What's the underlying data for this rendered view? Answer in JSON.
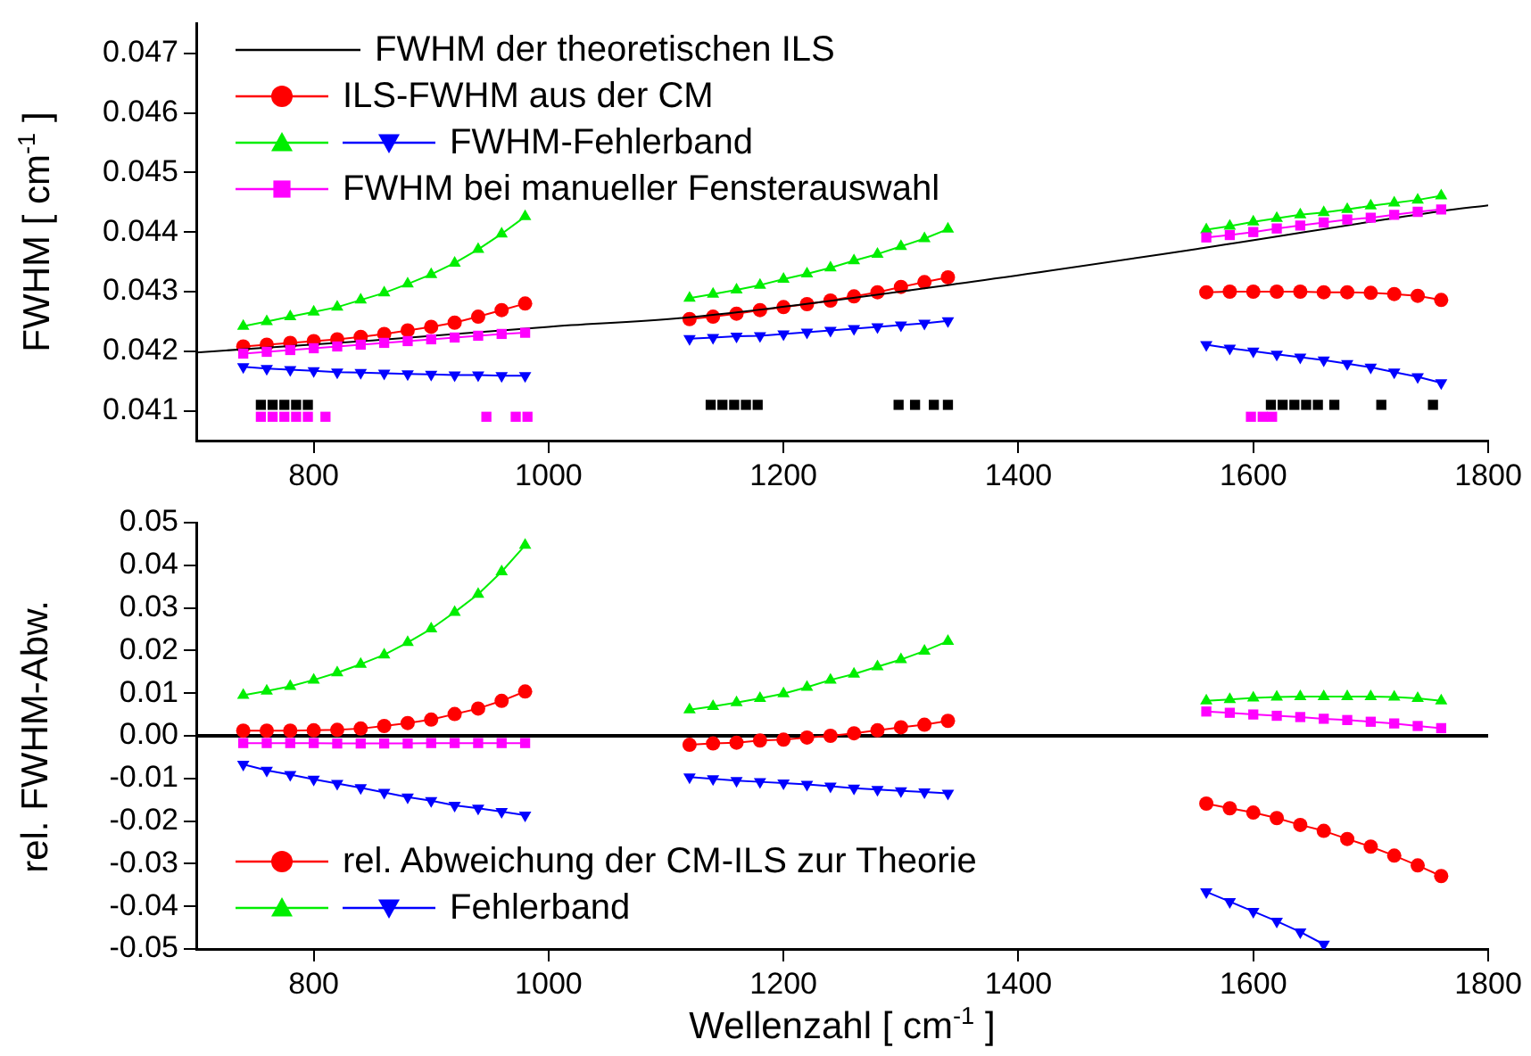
{
  "chart_data": [
    {
      "type": "line",
      "ylabel": "FWHM [ cm$^{-1}$ ]",
      "xlim": [
        700,
        1800
      ],
      "xticks": [
        800,
        1000,
        1200,
        1400,
        1600,
        1800
      ],
      "ylim": [
        0.0405,
        0.0475
      ],
      "yticks": [
        0.041,
        0.042,
        0.043,
        0.044,
        0.045,
        0.046,
        0.047
      ],
      "grid": false,
      "legend": "top left",
      "line_style": "solid",
      "x": [
        740,
        760,
        780,
        800,
        820,
        840,
        860,
        880,
        900,
        920,
        940,
        960,
        980,
        1050,
        1120,
        1140,
        1160,
        1180,
        1200,
        1220,
        1240,
        1260,
        1280,
        1300,
        1320,
        1340,
        1450,
        1560,
        1580,
        1600,
        1620,
        1640,
        1660,
        1680,
        1700,
        1720,
        1740,
        1760
      ],
      "series": [
        {
          "name": "FWHM der theoretischen ILS",
          "type": "line",
          "color": "#000000",
          "marker": "none",
          "x": [
            700,
            850,
            1000,
            1120,
            1340,
            1560,
            1760,
            1800
          ],
          "values": [
            0.04198,
            0.04218,
            0.04241,
            0.04257,
            0.04311,
            0.04374,
            0.04435,
            0.04445
          ]
        },
        {
          "name": "ILS-FWHM aus der CM",
          "color": "#ff0000",
          "marker": "circle",
          "values": [
            0.04208,
            0.04211,
            0.04214,
            0.04217,
            0.0422,
            0.04224,
            0.04229,
            0.04235,
            0.04241,
            0.04248,
            0.04258,
            0.04269,
            0.0428,
            null,
            0.04254,
            0.04258,
            0.04263,
            0.04269,
            0.04274,
            0.04279,
            0.04285,
            0.04292,
            0.04299,
            0.04308,
            0.04316,
            0.04324,
            null,
            0.04299,
            0.043,
            0.043,
            0.043,
            0.043,
            0.04299,
            0.04299,
            0.04298,
            0.04296,
            0.04293,
            0.04286
          ]
        },
        {
          "color": "#00ee00",
          "marker": "triangle",
          "values": [
            0.04242,
            0.0425,
            0.04258,
            0.04266,
            0.04274,
            0.04286,
            0.04298,
            0.04313,
            0.04329,
            0.04348,
            0.04371,
            0.04397,
            0.04426,
            null,
            0.04289,
            0.04296,
            0.04303,
            0.04311,
            0.04321,
            0.0433,
            0.0434,
            0.04352,
            0.04363,
            0.04376,
            0.04389,
            0.04405,
            null,
            0.04404,
            0.0441,
            0.04417,
            0.04423,
            0.04429,
            0.04433,
            0.04438,
            0.04444,
            0.04449,
            0.04454,
            0.04461
          ]
        },
        {
          "name": "FWHM-Fehlerband",
          "color": "#0000ff",
          "marker": "triangle-down",
          "values": [
            0.04174,
            0.04171,
            0.04169,
            0.04167,
            0.04165,
            0.04164,
            0.04163,
            0.04162,
            0.04161,
            0.0416,
            0.0416,
            0.04159,
            0.04159,
            null,
            0.04221,
            0.04223,
            0.04225,
            0.04226,
            0.04229,
            0.04232,
            0.04235,
            0.04238,
            0.04241,
            0.04244,
            0.04247,
            0.04251,
            null,
            0.04211,
            0.04205,
            0.042,
            0.04195,
            0.0419,
            0.04185,
            0.04179,
            0.04173,
            0.04165,
            0.04157,
            0.04147
          ]
        },
        {
          "name": "FWHM bei manueller Fensterauswahl",
          "color": "#ff00ff",
          "marker": "square",
          "values": [
            0.04196,
            0.04199,
            0.04202,
            0.04205,
            0.04208,
            0.04211,
            0.04214,
            0.04217,
            0.0422,
            0.04223,
            0.04226,
            0.04229,
            0.04231,
            null,
            null,
            null,
            null,
            null,
            null,
            null,
            null,
            null,
            null,
            null,
            null,
            null,
            null,
            0.04391,
            0.04395,
            0.044,
            0.04406,
            0.04411,
            0.04416,
            0.04421,
            0.04424,
            0.04429,
            0.04434,
            0.04438
          ]
        },
        {
          "type": "scatter",
          "color": "#000000",
          "marker": "square",
          "x": [
            755,
            765,
            775,
            785,
            795,
            1138,
            1148,
            1158,
            1168,
            1178,
            1298,
            1312,
            1328,
            1340,
            1615,
            1625,
            1635,
            1645,
            1655,
            1669,
            1709,
            1753
          ],
          "values": [
            0.0411,
            0.0411,
            0.0411,
            0.0411,
            0.0411,
            0.0411,
            0.0411,
            0.0411,
            0.0411,
            0.0411,
            0.0411,
            0.0411,
            0.0411,
            0.0411,
            0.0411,
            0.0411,
            0.0411,
            0.0411,
            0.0411,
            0.0411,
            0.0411,
            0.0411
          ]
        },
        {
          "type": "scatter",
          "color": "#ff00ff",
          "marker": "square",
          "x": [
            755,
            765,
            775,
            785,
            795,
            810,
            947,
            972,
            982,
            1598,
            1608,
            1616
          ],
          "values": [
            0.0409,
            0.0409,
            0.0409,
            0.0409,
            0.0409,
            0.0409,
            0.0409,
            0.0409,
            0.0409,
            0.0409,
            0.0409,
            0.0409
          ]
        }
      ]
    },
    {
      "type": "line",
      "xlabel": "Wellenzahl [ cm$^{-1}$ ]",
      "ylabel": "rel. FWHM-Abw.",
      "xlim": [
        700,
        1800
      ],
      "xticks": [
        800,
        1000,
        1200,
        1400,
        1600,
        1800
      ],
      "ylim": [
        -0.05,
        0.05
      ],
      "yticks": [
        {
          "value": -0.05,
          "label": "-0.05"
        },
        {
          "value": -0.04,
          "label": "-0.04"
        },
        {
          "value": -0.03,
          "label": "-0.03"
        },
        {
          "value": -0.02,
          "label": "-0.02"
        },
        {
          "value": -0.01,
          "label": "-0.01"
        },
        {
          "value": 0,
          "label": "0.00"
        },
        {
          "value": 0.01,
          "label": "0.01"
        },
        {
          "value": 0.02,
          "label": "0.02"
        },
        {
          "value": 0.03,
          "label": "0.03"
        },
        {
          "value": 0.04,
          "label": "0.04"
        },
        {
          "value": 0.05,
          "label": "0.05"
        }
      ],
      "grid": false,
      "legend": "bottom left",
      "line_style": "solid",
      "ref_lines": [
        {
          "axis": "y",
          "value": 0,
          "color": "#000000"
        }
      ],
      "x": [
        740,
        760,
        780,
        800,
        820,
        840,
        860,
        880,
        900,
        920,
        940,
        960,
        980,
        1050,
        1120,
        1140,
        1160,
        1180,
        1200,
        1220,
        1240,
        1260,
        1280,
        1300,
        1320,
        1340,
        1450,
        1560,
        1580,
        1600,
        1620,
        1640,
        1660,
        1680,
        1700,
        1720,
        1740,
        1760
      ],
      "series": [
        {
          "name": "rel. Abweichung der CM-ILS zur Theorie",
          "color": "#ff0000",
          "marker": "circle",
          "values": [
            0.0012,
            0.0012,
            0.0012,
            0.0013,
            0.0014,
            0.0017,
            0.0023,
            0.003,
            0.0038,
            0.0051,
            0.0064,
            0.0082,
            0.0104,
            null,
            -0.0021,
            -0.0018,
            -0.0016,
            -0.0011,
            -0.0009,
            -0.0004,
            0,
            0.0006,
            0.0013,
            0.002,
            0.0026,
            0.0035,
            null,
            -0.0159,
            -0.017,
            -0.018,
            -0.0193,
            -0.0209,
            -0.0223,
            -0.0242,
            -0.026,
            -0.0281,
            -0.0304,
            -0.0329
          ]
        },
        {
          "color": "#00ee00",
          "marker": "triangle",
          "values": [
            0.0095,
            0.0105,
            0.0116,
            0.0131,
            0.0148,
            0.0168,
            0.019,
            0.0219,
            0.0251,
            0.029,
            0.0332,
            0.0385,
            0.0447,
            null,
            0.0061,
            0.0069,
            0.0078,
            0.0088,
            0.0099,
            0.0114,
            0.0131,
            0.0145,
            0.0162,
            0.0179,
            0.0199,
            0.0222,
            null,
            0.0082,
            0.0085,
            0.0089,
            0.0091,
            0.0092,
            0.0092,
            0.0092,
            0.0092,
            0.0091,
            0.0088,
            0.0082
          ]
        },
        {
          "name": "Fehlerband",
          "color": "#0000ff",
          "marker": "triangle-down",
          "values": [
            -0.0067,
            -0.0081,
            -0.0091,
            -0.0102,
            -0.0112,
            -0.0122,
            -0.0133,
            -0.0144,
            -0.0152,
            -0.0163,
            -0.017,
            -0.0178,
            -0.0186,
            null,
            -0.0097,
            -0.0101,
            -0.0105,
            -0.0108,
            -0.0111,
            -0.0114,
            -0.0118,
            -0.0123,
            -0.0126,
            -0.0129,
            -0.0132,
            -0.0135,
            null,
            -0.0366,
            -0.0389,
            -0.0412,
            -0.0435,
            -0.046,
            -0.0489,
            null,
            null,
            null,
            null,
            null
          ]
        },
        {
          "color": "#ff00ff",
          "marker": "square",
          "values": [
            -0.0017,
            -0.0017,
            -0.0017,
            -0.0017,
            -0.0018,
            -0.0018,
            -0.0018,
            -0.0018,
            -0.0017,
            -0.0017,
            -0.0017,
            -0.0017,
            -0.0017,
            null,
            null,
            null,
            null,
            null,
            null,
            null,
            null,
            null,
            null,
            null,
            null,
            null,
            null,
            0.0057,
            0.0054,
            0.005,
            0.0047,
            0.0044,
            0.004,
            0.0037,
            0.0033,
            0.0029,
            0.0023,
            0.0018
          ]
        }
      ]
    }
  ]
}
